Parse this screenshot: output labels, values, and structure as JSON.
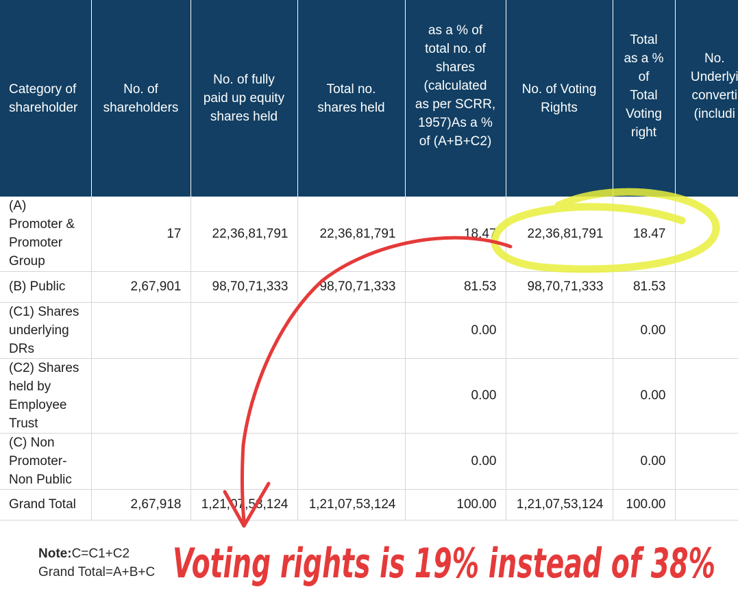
{
  "table": {
    "headers": [
      "Category of shareholder",
      "No. of shareholders",
      "No. of fully paid up equity shares held",
      "Total no. shares held",
      "as a % of total no. of shares (calculated as per SCRR, 1957)As a % of (A+B+C2)",
      "No. of Voting Rights",
      "Total as a % of Total Voting right",
      "No. Underlyi converti (includi"
    ],
    "header_lines": [
      [
        "Category of",
        "shareholder"
      ],
      [
        "No. of",
        "shareholders"
      ],
      [
        "No. of fully",
        "paid up equity",
        "shares held"
      ],
      [
        "Total no.",
        "shares held"
      ],
      [
        "as a % of",
        "total no. of",
        "shares",
        "(calculated",
        "as per SCRR,",
        "1957)As a %",
        "of (A+B+C2)"
      ],
      [
        "No. of Voting",
        "Rights"
      ],
      [
        "Total",
        "as a %",
        "of",
        "Total",
        "Voting",
        "right"
      ],
      [
        "No.",
        "Underlyi",
        "converti",
        "(includi"
      ]
    ],
    "rows": [
      {
        "category_lines": [
          "(A)",
          "Promoter &",
          "Promoter",
          "Group"
        ],
        "shareholders": "17",
        "fully_paid": "22,36,81,791",
        "total_shares": "22,36,81,791",
        "pct_shares": "18.47",
        "voting_rights": "22,36,81,791",
        "pct_voting": "18.47",
        "underlying": ""
      },
      {
        "category_lines": [
          "(B) Public"
        ],
        "shareholders": "2,67,901",
        "fully_paid": "98,70,71,333",
        "total_shares": "98,70,71,333",
        "pct_shares": "81.53",
        "voting_rights": "98,70,71,333",
        "pct_voting": "81.53",
        "underlying": ""
      },
      {
        "category_lines": [
          "(C1) Shares",
          "underlying",
          "DRs"
        ],
        "shareholders": "",
        "fully_paid": "",
        "total_shares": "",
        "pct_shares": "0.00",
        "voting_rights": "",
        "pct_voting": "0.00",
        "underlying": ""
      },
      {
        "category_lines": [
          "(C2) Shares",
          "held by",
          "Employee",
          "Trust"
        ],
        "shareholders": "",
        "fully_paid": "",
        "total_shares": "",
        "pct_shares": "0.00",
        "voting_rights": "",
        "pct_voting": "0.00",
        "underlying": ""
      },
      {
        "category_lines": [
          "(C) Non",
          "Promoter-",
          "Non Public"
        ],
        "shareholders": "",
        "fully_paid": "",
        "total_shares": "",
        "pct_shares": "0.00",
        "voting_rights": "",
        "pct_voting": "0.00",
        "underlying": ""
      },
      {
        "category_lines": [
          "Grand Total"
        ],
        "shareholders": "2,67,918",
        "fully_paid": "1,21,07,53,124",
        "total_shares": "1,21,07,53,124",
        "pct_shares": "100.00",
        "voting_rights": "1,21,07,53,124",
        "pct_voting": "100.00",
        "underlying": ""
      }
    ]
  },
  "notes": {
    "note_key": "Note:",
    "note_value": "C=C1+C2",
    "grand_total": "Grand Total=A+B+C"
  },
  "annotations": {
    "handwritten_text": "Voting rights is 19% instead of 38%",
    "highlight_color": "#e9ef3c",
    "ink_color": "#e53a3a"
  },
  "colors": {
    "header_bg": "#123f63",
    "header_text": "#ffffff",
    "grid": "#d6d6d6"
  }
}
